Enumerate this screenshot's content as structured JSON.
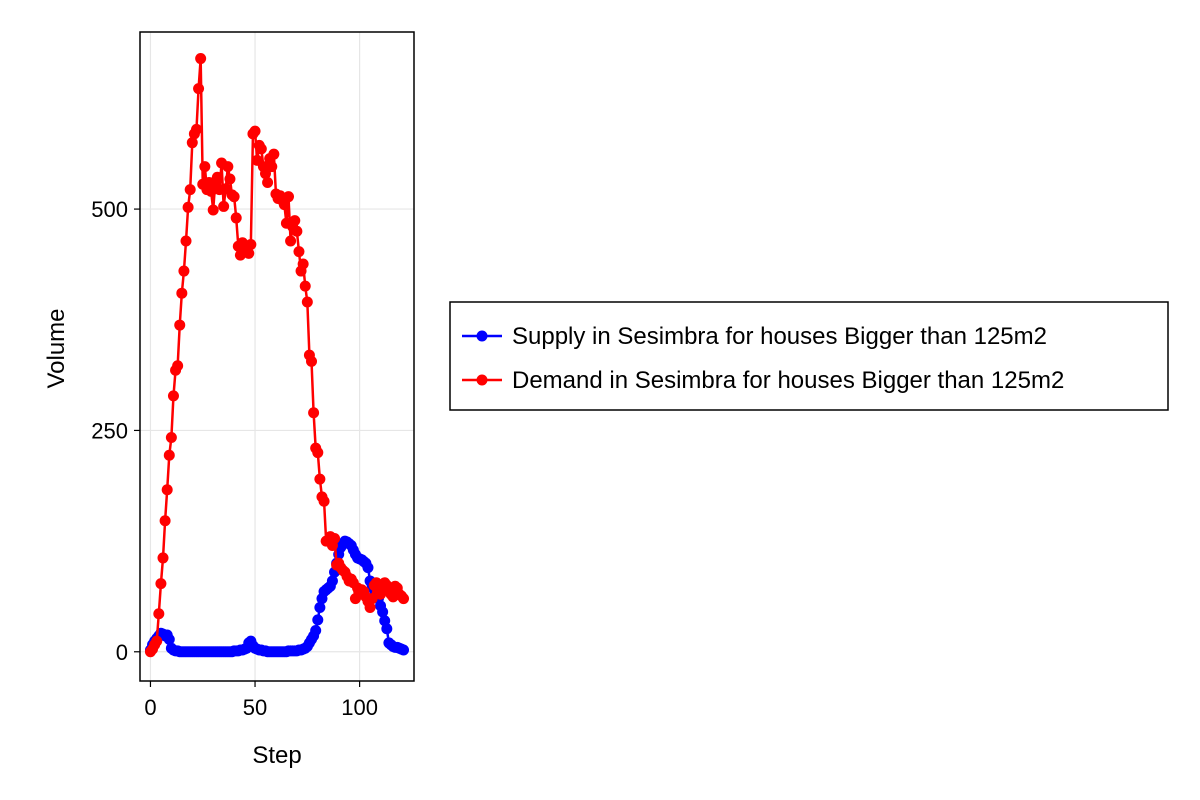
{
  "chart_data": {
    "type": "line",
    "xlabel": "Step",
    "ylabel": "Volume",
    "xlim": [
      -5,
      126
    ],
    "ylim": [
      -33,
      700
    ],
    "xticks": [
      0,
      50,
      100
    ],
    "yticks": [
      0,
      250,
      500
    ],
    "grid": true,
    "legend_position": "right",
    "series": [
      {
        "name": "Supply in Sesimbra for houses Bigger than 125m2",
        "color": "#0000ff",
        "x": [
          0,
          1,
          2,
          3,
          4,
          5,
          6,
          7,
          8,
          9,
          10,
          11,
          12,
          13,
          14,
          15,
          16,
          17,
          18,
          19,
          20,
          21,
          22,
          23,
          24,
          25,
          26,
          27,
          28,
          29,
          30,
          31,
          32,
          33,
          34,
          35,
          36,
          37,
          38,
          39,
          40,
          41,
          42,
          43,
          44,
          45,
          46,
          47,
          48,
          49,
          50,
          51,
          52,
          53,
          54,
          55,
          56,
          57,
          58,
          59,
          60,
          61,
          62,
          63,
          64,
          65,
          66,
          67,
          68,
          69,
          70,
          71,
          72,
          73,
          74,
          75,
          76,
          77,
          78,
          79,
          80,
          81,
          82,
          83,
          84,
          85,
          86,
          87,
          88,
          89,
          90,
          91,
          92,
          93,
          94,
          95,
          96,
          97,
          98,
          99,
          100,
          101,
          102,
          103,
          104,
          105,
          106,
          107,
          108,
          109,
          110,
          111,
          112,
          113,
          114,
          115,
          116,
          117,
          118,
          119,
          120,
          121
        ],
        "values": [
          2,
          8,
          12,
          15,
          18,
          21,
          20,
          18,
          19,
          14,
          4,
          2,
          1,
          1,
          0,
          0,
          0,
          0,
          0,
          0,
          0,
          0,
          0,
          0,
          0,
          0,
          0,
          0,
          0,
          0,
          0,
          0,
          0,
          0,
          0,
          0,
          0,
          0,
          0,
          0,
          1,
          1,
          1,
          2,
          2,
          3,
          4,
          10,
          12,
          7,
          4,
          3,
          2,
          2,
          1,
          1,
          0,
          0,
          0,
          0,
          0,
          0,
          0,
          0,
          0,
          0,
          1,
          1,
          1,
          1,
          1,
          2,
          2,
          3,
          4,
          6,
          10,
          14,
          18,
          24,
          36,
          50,
          60,
          68,
          70,
          72,
          74,
          80,
          90,
          100,
          110,
          118,
          122,
          125,
          124,
          122,
          120,
          115,
          110,
          106,
          105,
          104,
          102,
          100,
          95,
          80,
          75,
          70,
          65,
          60,
          52,
          45,
          35,
          26,
          10,
          8,
          6,
          5,
          5,
          4,
          3,
          2
        ]
      },
      {
        "name": "Demand in Sesimbra for houses Bigger than 125m2",
        "color": "#ff0000",
        "x": [
          0,
          1,
          2,
          3,
          4,
          5,
          6,
          7,
          8,
          9,
          10,
          11,
          12,
          13,
          14,
          15,
          16,
          17,
          18,
          19,
          20,
          21,
          22,
          23,
          24,
          25,
          26,
          27,
          28,
          29,
          30,
          31,
          32,
          33,
          34,
          35,
          36,
          37,
          38,
          39,
          40,
          41,
          42,
          43,
          44,
          45,
          46,
          47,
          48,
          49,
          50,
          51,
          52,
          53,
          54,
          55,
          56,
          57,
          58,
          59,
          60,
          61,
          62,
          63,
          64,
          65,
          66,
          67,
          68,
          69,
          70,
          71,
          72,
          73,
          74,
          75,
          76,
          77,
          78,
          79,
          80,
          81,
          82,
          83,
          84,
          85,
          86,
          87,
          88,
          89,
          90,
          91,
          92,
          93,
          94,
          95,
          96,
          97,
          98,
          99,
          100,
          101,
          102,
          103,
          104,
          105,
          106,
          107,
          108,
          109,
          110,
          111,
          112,
          113,
          114,
          115,
          116,
          117,
          118,
          119,
          120,
          121
        ],
        "values": [
          0,
          3,
          8,
          12,
          43,
          77,
          106,
          148,
          183,
          222,
          242,
          289,
          318,
          323,
          369,
          405,
          430,
          464,
          502,
          522,
          575,
          585,
          590,
          636,
          670,
          528,
          548,
          522,
          530,
          520,
          499,
          531,
          536,
          522,
          552,
          503,
          523,
          548,
          534,
          516,
          514,
          490,
          458,
          448,
          462,
          455,
          458,
          450,
          460,
          585,
          588,
          555,
          572,
          568,
          548,
          540,
          530,
          557,
          548,
          562,
          517,
          512,
          515,
          510,
          505,
          484,
          514,
          464,
          480,
          487,
          475,
          452,
          430,
          438,
          413,
          395,
          335,
          328,
          270,
          230,
          225,
          195,
          175,
          170,
          125,
          126,
          130,
          120,
          128,
          98,
          100,
          95,
          92,
          90,
          85,
          80,
          82,
          78,
          60,
          72,
          65,
          70,
          68,
          62,
          57,
          50,
          60,
          75,
          78,
          70,
          65,
          72,
          78,
          75,
          70,
          65,
          62,
          74,
          72,
          65,
          63,
          60
        ]
      }
    ]
  }
}
